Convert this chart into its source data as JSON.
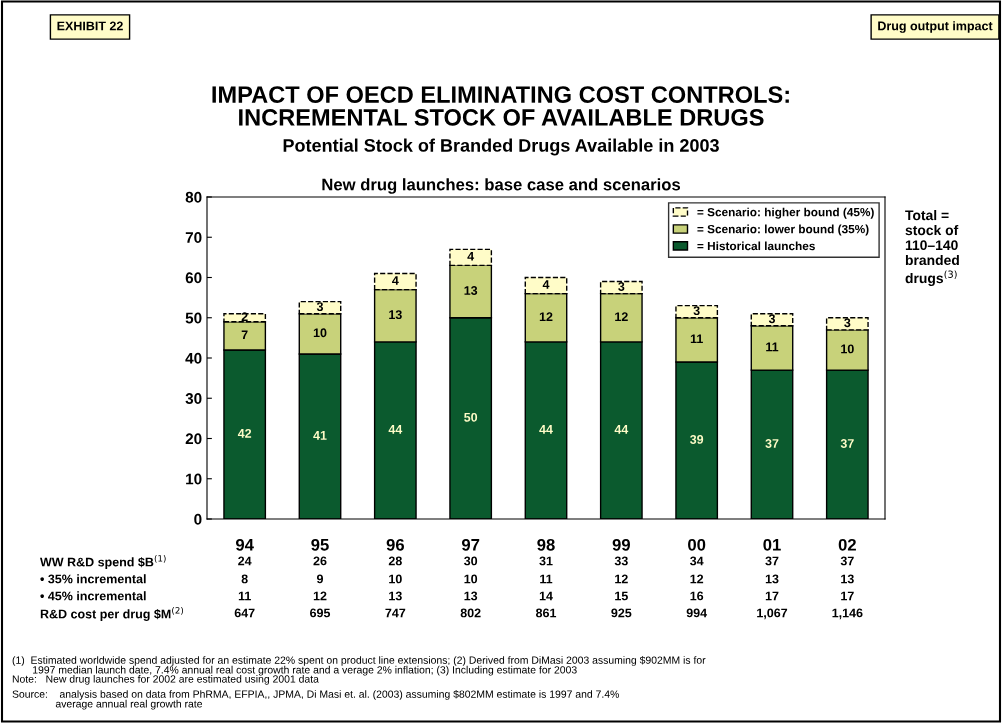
{
  "chart_data": {
    "type": "bar",
    "stacked": true,
    "title": "IMPACT OF OECD ELIMINATING COST CONTROLS:\nINCREMENTAL STOCK OF AVAILABLE DRUGS",
    "subtitle": "Potential Stock of Branded Drugs Available in 2003",
    "categories": [
      "94",
      "95",
      "96",
      "97",
      "98",
      "99",
      "00",
      "01",
      "02"
    ],
    "series": [
      {
        "name": "= Historical launches",
        "color": "#0b5a2e",
        "values": [
          42,
          41,
          44,
          50,
          44,
          44,
          39,
          37,
          37
        ]
      },
      {
        "name": "= Scenario: lower bound (35%)",
        "color": "#c8d27a",
        "values": [
          7,
          10,
          13,
          13,
          12,
          12,
          11,
          11,
          10
        ]
      },
      {
        "name": "= Scenario: higher bound (45%)",
        "color": "#fffcc8",
        "line_style": "dashed",
        "values": [
          2,
          3,
          4,
          4,
          4,
          3,
          3,
          3,
          3
        ]
      }
    ],
    "ylim": [
      0,
      80
    ],
    "yticks": [
      0,
      10,
      20,
      30,
      40,
      50,
      60,
      70,
      80
    ],
    "data_labels": true,
    "legend": "top right",
    "grid": false,
    "annotations": [
      "EXHIBIT 22",
      "Drug output impact",
      "Total =\nstock of\n110–140\nbranded\ndrugs$^{(3)}$",
      "New drug launches: base case and scenarios",
      "WW R&D spend $B$^{(1)}$",
      "24",
      "26",
      "28",
      "30",
      "31",
      "33",
      "34",
      "37",
      "37",
      "• 35% incremental",
      "8",
      "9",
      "10",
      "10",
      "11",
      "12",
      "12",
      "13",
      "13",
      "• 45% incremental",
      "11",
      "12",
      "13",
      "13",
      "14",
      "15",
      "16",
      "17",
      "17",
      "R&D cost per drug $M$^{(2)}$",
      "647",
      "695",
      "747",
      "802",
      "861",
      "925",
      "994",
      "1,067",
      "1,146",
      "(1)  Estimated worldwide spend adjusted for an estimate 22% spent on product line extensions; (2) Derived from DiMasi 2003 assuming $902MM is for\n       1997 median launch date, 7.4% annual real cost growth rate and a verage 2% inflation; (3) Including estimate for 2003",
      "Note:   New drug launches for 2002 are estimated using 2001 data",
      "Source:    analysis based on data from PhRMA, EFPIA,, JPMA, Di Masi et. al. (2003) assuming $802MM estimate is 1997 and 7.4%\n               average annual real growth rate"
    ]
  }
}
